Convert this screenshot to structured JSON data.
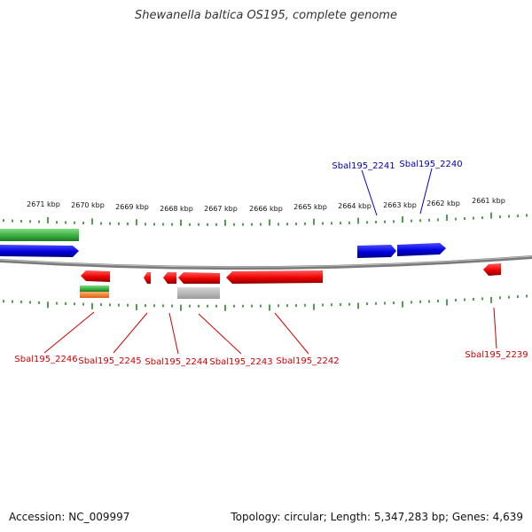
{
  "header": {
    "title": "Shewanella baltica OS195, complete genome"
  },
  "footer": {
    "accession": "Accession: NC_009997",
    "stats": "Topology: circular; Length: 5,347,283 bp; Genes: 4,639"
  },
  "colors": {
    "forward_gene": "#0000e0",
    "reverse_gene": "#ee0000",
    "green_feature": "#3cb043",
    "orange_feature": "#f07a1a",
    "gray_feature": "#b0b0b0",
    "tick": "#1a7a1a",
    "backbone": "#7a7a7a"
  },
  "scale_labels": [
    "2671 kbp",
    "2670 kbp",
    "2669 kbp",
    "2668 kbp",
    "2667 kbp",
    "2666 kbp",
    "2665 kbp",
    "2664 kbp",
    "2663 kbp",
    "2662 kbp",
    "2661 kbp"
  ],
  "gene_labels": [
    {
      "name": "Sbal195_2241",
      "strand": "forward"
    },
    {
      "name": "Sbal195_2240",
      "strand": "forward"
    },
    {
      "name": "Sbal195_2246",
      "strand": "reverse"
    },
    {
      "name": "Sbal195_2245",
      "strand": "reverse"
    },
    {
      "name": "Sbal195_2244",
      "strand": "reverse"
    },
    {
      "name": "Sbal195_2243",
      "strand": "reverse"
    },
    {
      "name": "Sbal195_2242",
      "strand": "reverse"
    },
    {
      "name": "Sbal195_2239",
      "strand": "reverse"
    }
  ]
}
